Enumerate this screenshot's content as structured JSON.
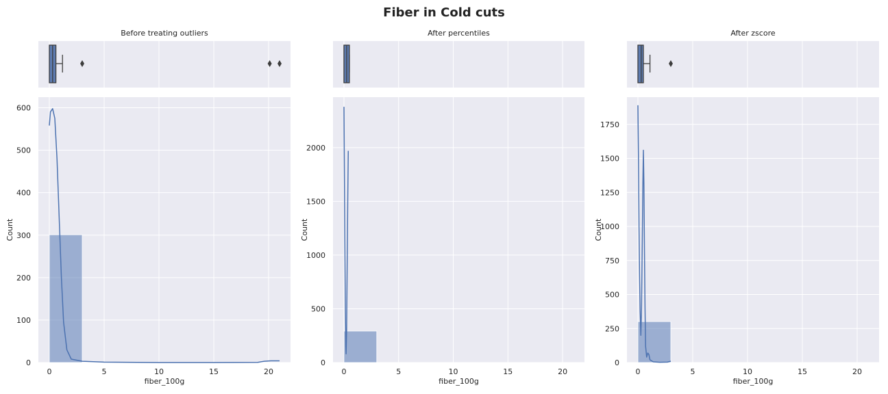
{
  "figure": {
    "title": "Fiber in Cold cuts",
    "colors": {
      "panel_bg": "#eaeaf2",
      "grid": "#ffffff",
      "hist_fill": "#4c72b0",
      "kde_line": "#4c72b0",
      "box_fill": "#5d7bb0",
      "box_edge": "#3d3d3d"
    }
  },
  "chart_data": [
    {
      "type": "histogram",
      "title": "Before treating outliers",
      "xlabel": "fiber_100g",
      "ylabel": "Count",
      "xlim": [
        -1,
        22
      ],
      "ylim": [
        0,
        625
      ],
      "xticks": [
        0,
        5,
        10,
        15,
        20
      ],
      "yticks": [
        0,
        100,
        200,
        300,
        400,
        500,
        600
      ],
      "grid": true,
      "bins": [
        {
          "x0": 0,
          "x1": 3,
          "count": 301
        }
      ],
      "kde": [
        [
          0,
          558
        ],
        [
          0.1,
          590
        ],
        [
          0.3,
          598
        ],
        [
          0.5,
          575
        ],
        [
          0.7,
          480
        ],
        [
          0.9,
          340
        ],
        [
          1.1,
          200
        ],
        [
          1.3,
          95
        ],
        [
          1.6,
          30
        ],
        [
          2,
          8
        ],
        [
          3,
          3
        ],
        [
          5,
          1
        ],
        [
          10,
          0
        ],
        [
          15,
          0
        ],
        [
          19,
          0.5
        ],
        [
          19.6,
          3
        ],
        [
          20.2,
          4
        ],
        [
          21,
          4
        ]
      ],
      "boxplot": {
        "min": 0,
        "q1": 0,
        "median": 0.3,
        "q3": 0.6,
        "max": 1.2,
        "outliers": [
          3,
          20.1,
          21
        ]
      }
    },
    {
      "type": "histogram",
      "title": "After percentiles",
      "xlabel": "fiber_100g",
      "ylabel": "Count",
      "xlim": [
        -1,
        22
      ],
      "ylim": [
        0,
        2470
      ],
      "xticks": [
        0,
        5,
        10,
        15,
        20
      ],
      "yticks": [
        0,
        500,
        1000,
        1500,
        2000
      ],
      "grid": true,
      "bins": [
        {
          "x0": 0,
          "x1": 3,
          "count": 293
        }
      ],
      "kde": [
        [
          0,
          2380
        ],
        [
          0.03,
          2000
        ],
        [
          0.08,
          1200
        ],
        [
          0.13,
          500
        ],
        [
          0.17,
          150
        ],
        [
          0.2,
          80
        ],
        [
          0.25,
          300
        ],
        [
          0.3,
          900
        ],
        [
          0.35,
          1500
        ],
        [
          0.4,
          1970
        ]
      ],
      "boxplot": {
        "min": 0,
        "q1": 0,
        "median": 0.25,
        "q3": 0.5,
        "max": 0.5,
        "outliers": []
      }
    },
    {
      "type": "histogram",
      "title": "After zscore",
      "xlabel": "fiber_100g",
      "ylabel": "Count",
      "xlim": [
        -1,
        22
      ],
      "ylim": [
        0,
        1950
      ],
      "xticks": [
        0,
        5,
        10,
        15,
        20
      ],
      "yticks": [
        0,
        250,
        500,
        750,
        1000,
        1250,
        1500,
        1750
      ],
      "grid": true,
      "bins": [
        {
          "x0": 0,
          "x1": 3,
          "count": 301
        }
      ],
      "kde": [
        [
          0,
          1890
        ],
        [
          0.05,
          1500
        ],
        [
          0.1,
          1000
        ],
        [
          0.15,
          650
        ],
        [
          0.2,
          380
        ],
        [
          0.27,
          200
        ],
        [
          0.33,
          400
        ],
        [
          0.4,
          900
        ],
        [
          0.45,
          1300
        ],
        [
          0.5,
          1560
        ],
        [
          0.55,
          1300
        ],
        [
          0.6,
          800
        ],
        [
          0.65,
          400
        ],
        [
          0.7,
          120
        ],
        [
          0.8,
          40
        ],
        [
          0.9,
          70
        ],
        [
          1,
          60
        ],
        [
          1.1,
          20
        ],
        [
          1.4,
          5
        ],
        [
          2,
          2
        ],
        [
          2.7,
          3
        ],
        [
          3,
          10
        ]
      ],
      "boxplot": {
        "min": 0,
        "q1": 0,
        "median": 0.3,
        "q3": 0.5,
        "max": 1.1,
        "outliers": [
          3
        ]
      }
    }
  ]
}
